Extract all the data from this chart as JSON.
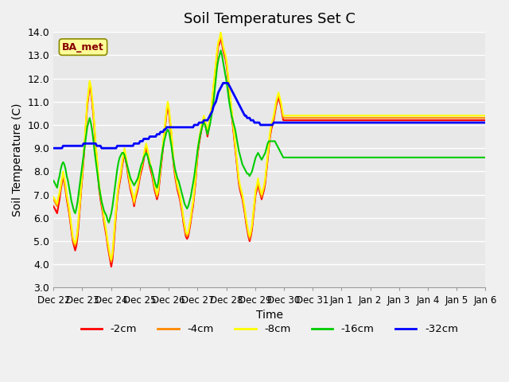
{
  "title": "Soil Temperatures Set C",
  "xlabel": "Time",
  "ylabel": "Soil Temperature (C)",
  "ylim": [
    3.0,
    14.0
  ],
  "yticks": [
    3.0,
    4.0,
    5.0,
    6.0,
    7.0,
    8.0,
    9.0,
    10.0,
    11.0,
    12.0,
    13.0,
    14.0
  ],
  "xtick_labels": [
    "Dec 22",
    "Dec 23",
    "Dec 24",
    "Dec 25",
    "Dec 26",
    "Dec 27",
    "Dec 28",
    "Dec 29",
    "Dec 30",
    "Dec 31",
    "Jan 1",
    "Jan 2",
    "Jan 3",
    "Jan 4",
    "Jan 5",
    "Jan 6"
  ],
  "legend_labels": [
    "-2cm",
    "-4cm",
    "-8cm",
    "-16cm",
    "-32cm"
  ],
  "legend_colors": [
    "#ff0000",
    "#ff8800",
    "#ffff00",
    "#00cc00",
    "#0000ff"
  ],
  "line_widths": [
    1.5,
    1.5,
    1.5,
    1.5,
    2.0
  ],
  "background_color": "#e8e8e8",
  "plot_bg_color": "#e8e8e8",
  "label_box_color": "#ffff99",
  "label_box_edge": "#888800",
  "station_label": "BA_met",
  "annotation_fontsize": 9,
  "title_fontsize": 13
}
